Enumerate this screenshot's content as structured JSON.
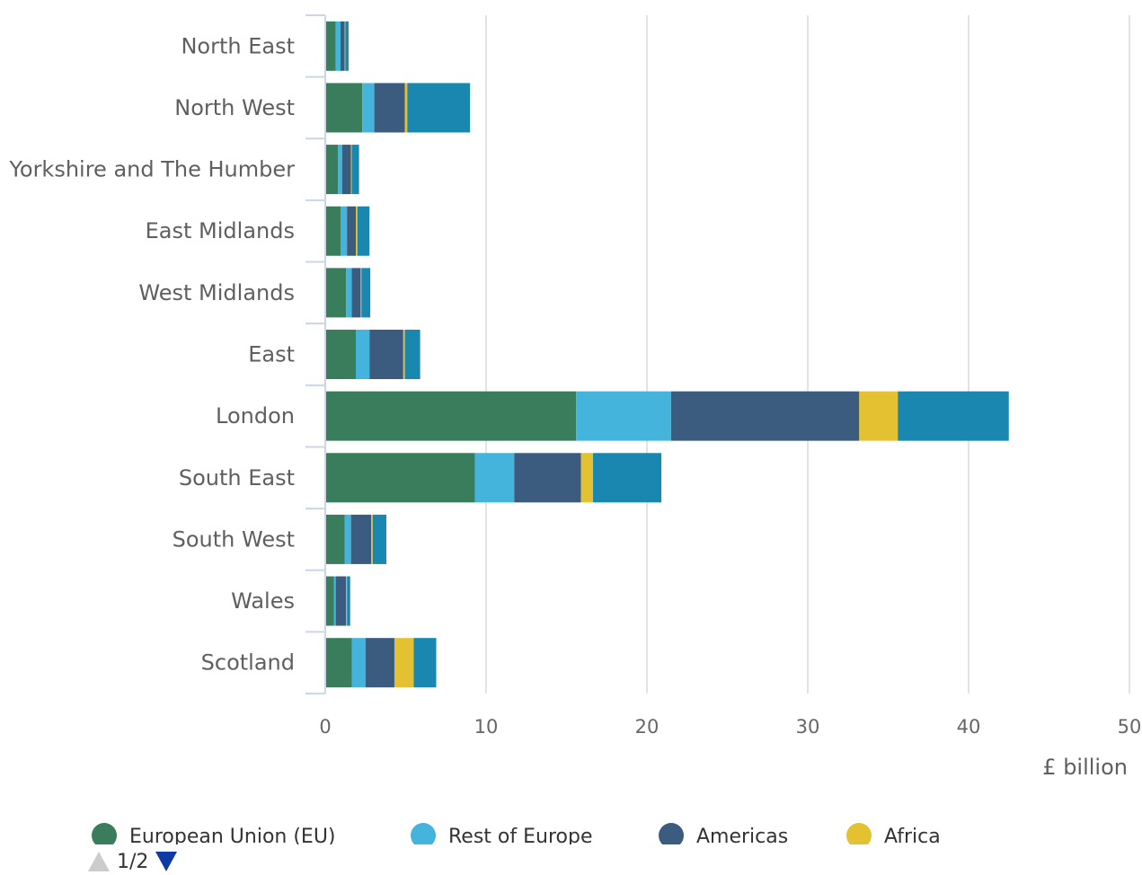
{
  "chart_data": {
    "type": "bar",
    "orientation": "horizontal",
    "stacked": true,
    "categories": [
      "North East",
      "North West",
      "Yorkshire and The Humber",
      "East Midlands",
      "West Midlands",
      "East",
      "London",
      "South East",
      "South West",
      "Wales",
      "Scotland"
    ],
    "series": [
      {
        "name": "European Union (EU)",
        "color": "#3a7d5c",
        "values": [
          0.65,
          2.3,
          0.8,
          0.95,
          1.3,
          1.9,
          15.6,
          9.3,
          1.2,
          0.55,
          1.65
        ]
      },
      {
        "name": "Rest of Europe",
        "color": "#45b4dc",
        "values": [
          0.3,
          0.75,
          0.25,
          0.4,
          0.35,
          0.85,
          5.9,
          2.45,
          0.4,
          0.1,
          0.85
        ]
      },
      {
        "name": "Americas",
        "color": "#3b5b7f",
        "values": [
          0.25,
          1.9,
          0.55,
          0.55,
          0.55,
          2.1,
          11.7,
          4.15,
          1.25,
          0.65,
          1.8
        ]
      },
      {
        "name": "Africa",
        "color": "#e3c131",
        "values": [
          0.05,
          0.15,
          0.05,
          0.1,
          0.05,
          0.1,
          2.4,
          0.75,
          0.1,
          0.05,
          1.2
        ]
      },
      {
        "name": "",
        "color": "#1a87b0",
        "values": [
          0.2,
          3.9,
          0.45,
          0.75,
          0.55,
          0.95,
          6.9,
          4.25,
          0.85,
          0.2,
          1.4
        ]
      }
    ],
    "xlim": [
      0,
      50
    ],
    "xticks": [
      0,
      10,
      20,
      30,
      40,
      50
    ],
    "xlabel": "£ billion",
    "grid": "vertical",
    "legend_position": "bottom"
  },
  "legend": {
    "items": [
      {
        "label": "European Union (EU)",
        "color": "#3a7d5c"
      },
      {
        "label": "Rest of Europe",
        "color": "#45b4dc"
      },
      {
        "label": "Americas",
        "color": "#3b5b7f"
      },
      {
        "label": "Africa",
        "color": "#e3c131"
      }
    ],
    "page_text": "1/2"
  }
}
